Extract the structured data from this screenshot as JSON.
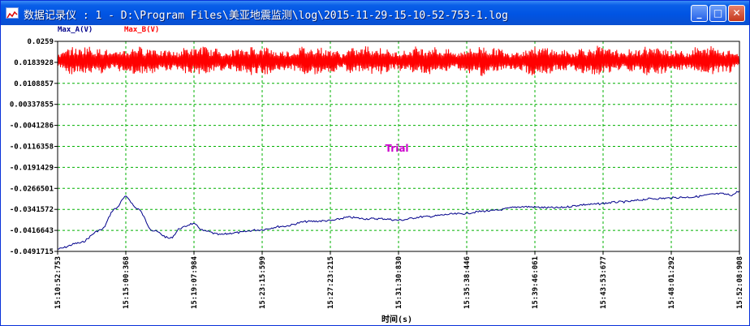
{
  "window": {
    "title": "数据记录仪 : 1 - D:\\Program Files\\美亚地震监测\\log\\2015-11-29-15-10-52-753-1.log",
    "buttons": {
      "minimize": "_",
      "maximize": "□",
      "close": "✕"
    }
  },
  "colors": {
    "series_a": "#00008b",
    "series_b": "#ff0000",
    "grid": "#00b000",
    "watermark": "#cc00cc",
    "axis": "#000000"
  },
  "chart_data": {
    "type": "line",
    "xlabel": "时间(s)",
    "ylabel": "",
    "watermark": "Trial",
    "ylim": [
      -0.0491715,
      0.0259
    ],
    "y_ticks": [
      "0.0259",
      "0.0183928",
      "0.0108857",
      "0.00337855",
      "-0.0041286",
      "-0.0116358",
      "-0.0191429",
      "-0.0266501",
      "-0.0341572",
      "-0.0416643",
      "-0.0491715"
    ],
    "x_ticks": [
      "15:10:52:753",
      "15:15:00:368",
      "15:19:07:984",
      "15:23:15:599",
      "15:27:23:215",
      "15:31:30:830",
      "15:35:38:446",
      "15:39:46:061",
      "15:43:53:677",
      "15:48:01:292",
      "15:52:08:908"
    ],
    "legend": [
      {
        "name": "Max_A(V)",
        "color": "#00008b"
      },
      {
        "name": "Max_B(V)",
        "color": "#ff0000"
      }
    ],
    "series": [
      {
        "name": "Max_A(V)",
        "x": [
          "15:10:52",
          "15:12:10",
          "15:13:30",
          "15:14:20",
          "15:15:00",
          "15:15:40",
          "15:16:40",
          "15:17:40",
          "15:18:20",
          "15:19:00",
          "15:19:50",
          "15:20:40",
          "15:21:40",
          "15:23:00",
          "15:24:30",
          "15:26:00",
          "15:27:20",
          "15:28:30",
          "15:29:30",
          "15:30:30",
          "15:31:30",
          "15:33:00",
          "15:35:00",
          "15:37:00",
          "15:39:00",
          "15:41:00",
          "15:43:00",
          "15:45:00",
          "15:47:00",
          "15:49:00",
          "15:51:00",
          "15:51:40",
          "15:52:08"
        ],
        "values": [
          -0.0483,
          -0.0462,
          -0.0415,
          -0.034,
          -0.0297,
          -0.0338,
          -0.0418,
          -0.0445,
          -0.0408,
          -0.0393,
          -0.042,
          -0.0432,
          -0.0425,
          -0.0415,
          -0.0402,
          -0.0385,
          -0.0382,
          -0.037,
          -0.0375,
          -0.0375,
          -0.038,
          -0.0368,
          -0.0358,
          -0.0347,
          -0.0332,
          -0.0336,
          -0.0324,
          -0.0315,
          -0.0303,
          -0.0298,
          -0.0286,
          -0.029,
          -0.0276
        ]
      },
      {
        "name": "Max_B(V)",
        "x": [
          "15:10:52",
          "15:52:08"
        ],
        "values": [
          0.019,
          0.019
        ],
        "band": [
          0.0145,
          0.0255
        ]
      }
    ]
  }
}
